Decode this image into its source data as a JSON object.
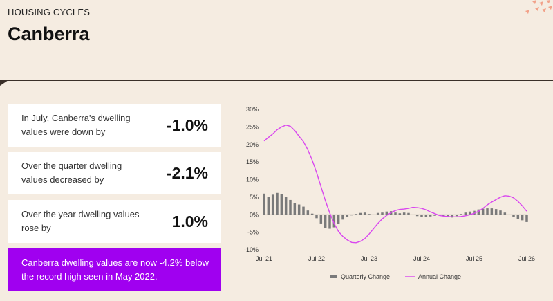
{
  "header": {
    "label": "HOUSING CYCLES",
    "title": "Canberra"
  },
  "stats": [
    {
      "description": "In July, Canberra's dwelling values were down by",
      "value": "-1.0%"
    },
    {
      "description": "Over the quarter dwelling values decreased by",
      "value": "-2.1%"
    },
    {
      "description": "Over the year dwelling values rose by",
      "value": "1.0%"
    }
  ],
  "callout": "Canberra dwelling values are now -4.2% below the record high seen in May 2022.",
  "colors": {
    "background": "#f5ece1",
    "callout": "#a000f0",
    "quarterly": "#7a7a7a",
    "annual": "#d946ef"
  },
  "chart_data": {
    "type": "bar+line",
    "ylim": [
      -10,
      30
    ],
    "y_ticks": [
      "30%",
      "25%",
      "20%",
      "15%",
      "10%",
      "5%",
      "0%",
      "-5%",
      "-10%"
    ],
    "x_ticks": [
      "Jul 21",
      "Jul 22",
      "Jul 23",
      "Jul 24",
      "Jul 25",
      "Jul 26"
    ],
    "x_tick_months": [
      0,
      12,
      24,
      36,
      48,
      60
    ],
    "legend_position": "bottom",
    "series": [
      {
        "name": "Quarterly Change",
        "type": "bar",
        "values": [
          6.0,
          5.0,
          5.7,
          6.2,
          5.8,
          5.0,
          4.2,
          3.2,
          2.9,
          2.3,
          1.2,
          0.3,
          -1.0,
          -2.5,
          -3.8,
          -4.0,
          -3.6,
          -2.6,
          -1.4,
          -0.6,
          -0.2,
          0.2,
          0.5,
          0.6,
          0.2,
          0.0,
          0.5,
          0.6,
          0.9,
          1.0,
          0.6,
          0.4,
          0.6,
          0.5,
          0.0,
          -0.4,
          -0.7,
          -0.7,
          -0.5,
          -0.3,
          -0.2,
          -0.4,
          -0.7,
          -0.8,
          -0.4,
          0.2,
          0.6,
          0.9,
          1.1,
          1.5,
          1.7,
          1.8,
          1.8,
          1.6,
          1.2,
          0.6,
          0.0,
          -0.6,
          -1.2,
          -1.6,
          -2.1
        ]
      },
      {
        "name": "Annual Change",
        "type": "line",
        "values": [
          21.0,
          22.0,
          23.0,
          24.2,
          25.0,
          25.5,
          25.2,
          24.0,
          22.3,
          20.8,
          18.5,
          15.5,
          12.0,
          8.0,
          4.0,
          0.5,
          -2.5,
          -4.8,
          -6.2,
          -7.2,
          -7.9,
          -8.0,
          -7.6,
          -6.8,
          -5.5,
          -4.0,
          -2.5,
          -1.2,
          -0.2,
          0.6,
          1.2,
          1.5,
          1.6,
          1.8,
          2.1,
          2.0,
          1.8,
          1.4,
          0.8,
          0.3,
          -0.2,
          -0.4,
          -0.5,
          -0.6,
          -0.6,
          -0.5,
          -0.3,
          0.0,
          0.4,
          1.0,
          1.8,
          2.8,
          3.6,
          4.3,
          5.0,
          5.4,
          5.3,
          4.8,
          3.8,
          2.5,
          1.0
        ]
      }
    ]
  }
}
